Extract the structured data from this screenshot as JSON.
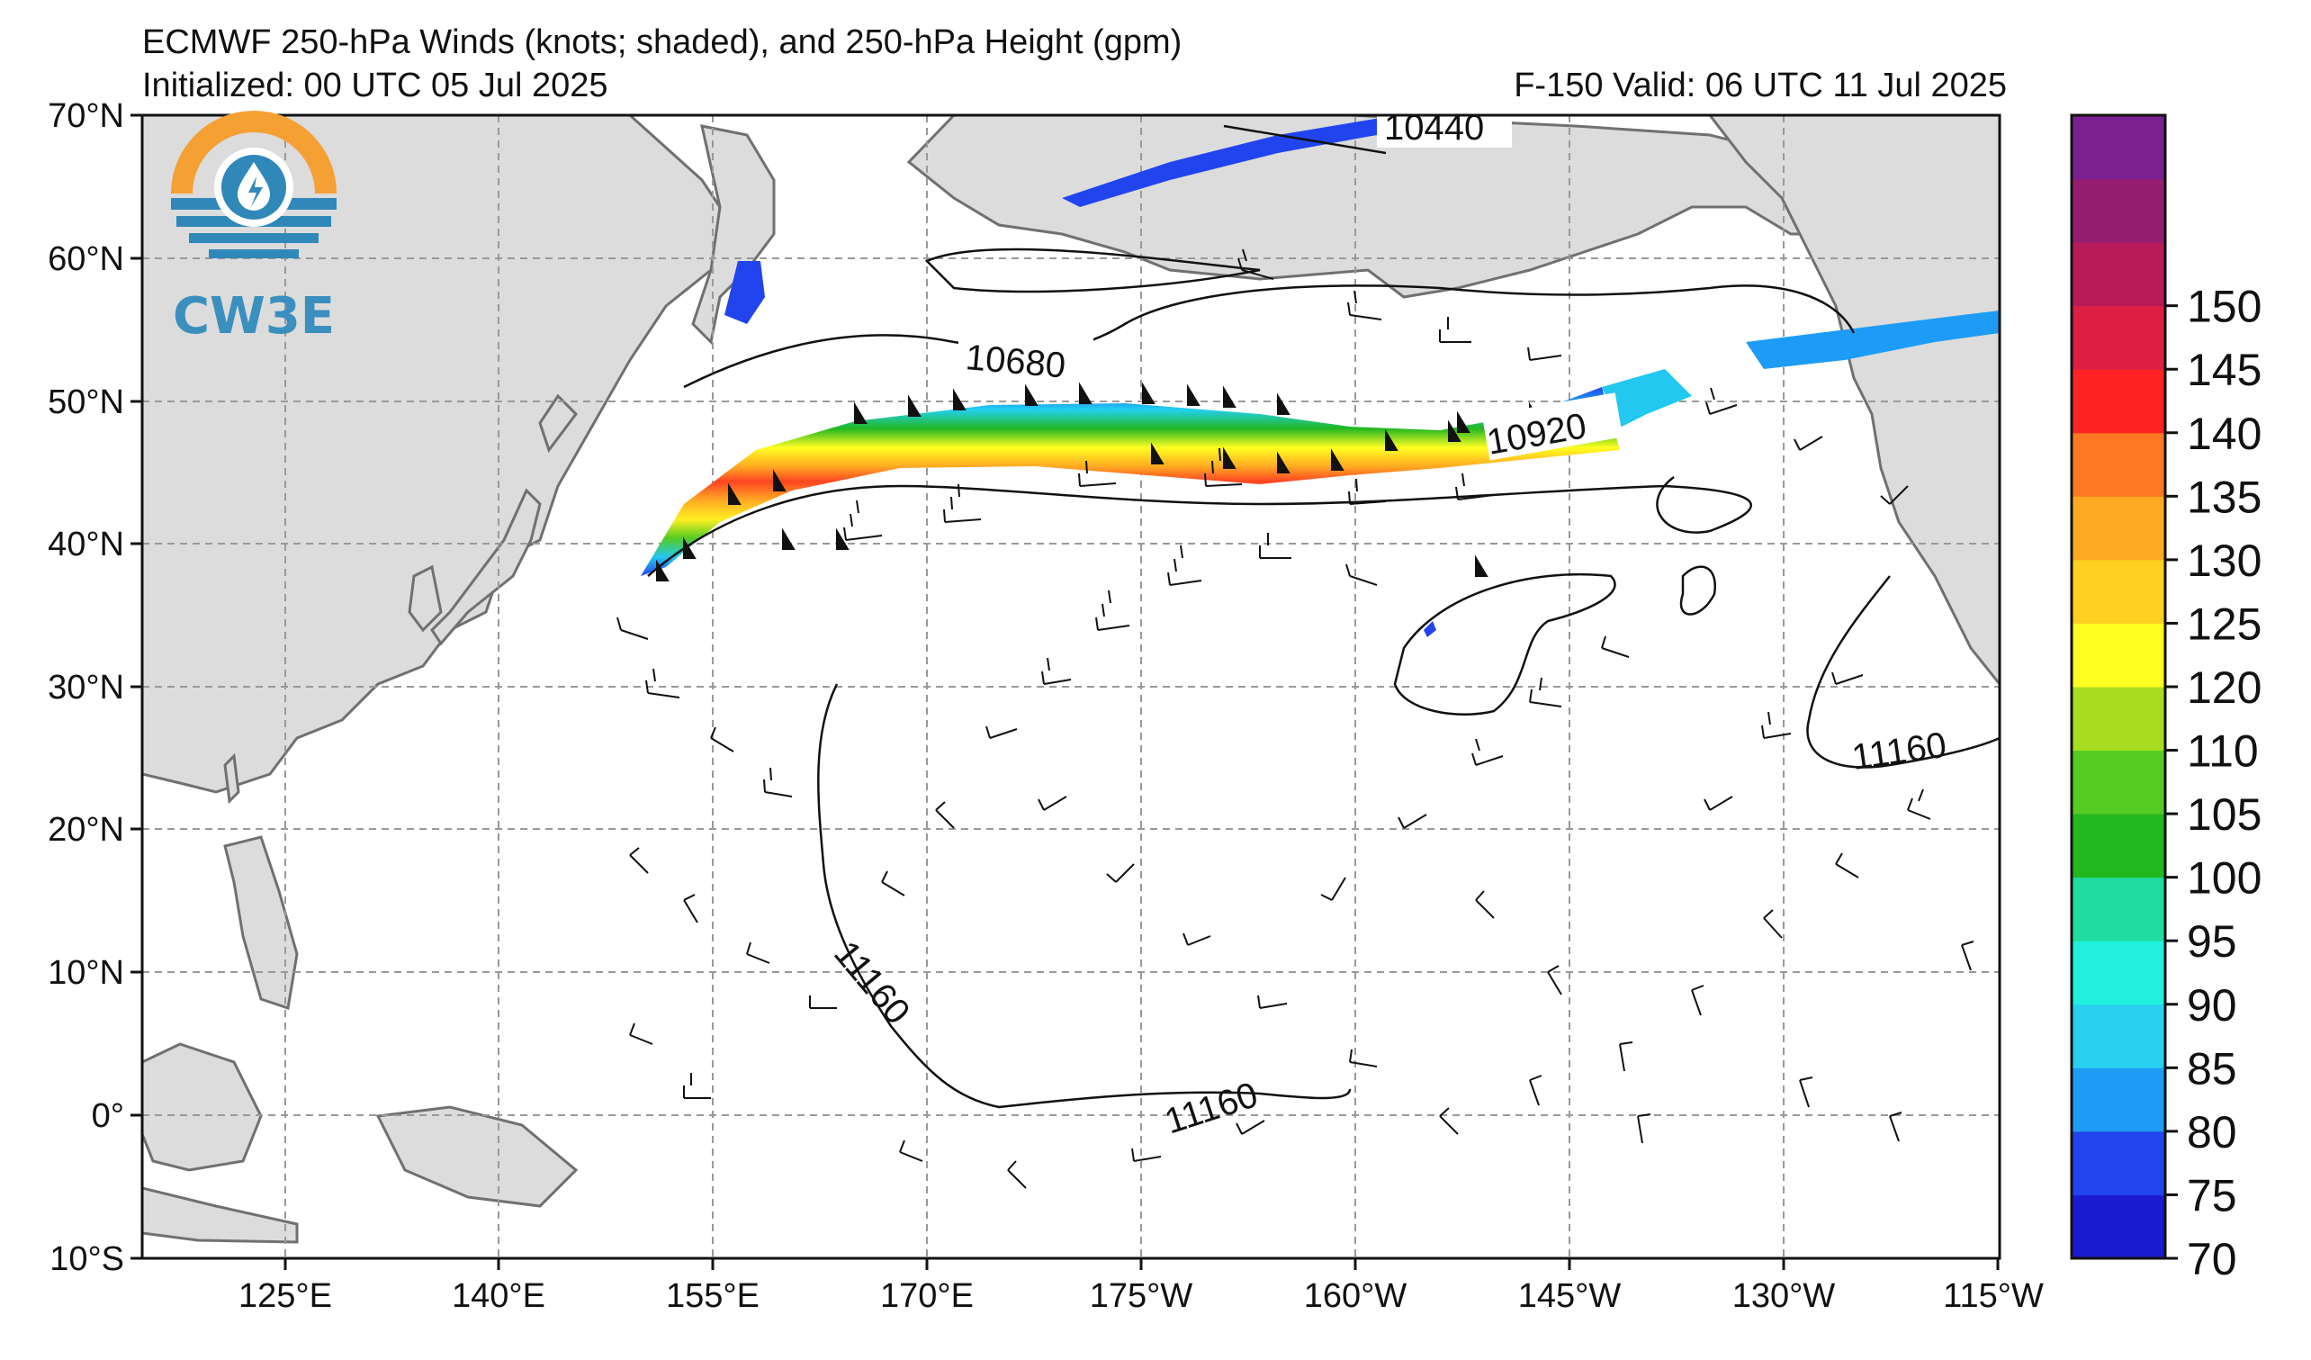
{
  "title_line1": "ECMWF 250-hPa Winds (knots; shaded), and 250-hPa Height (gpm)",
  "title_line2": "Initialized: 00 UTC 05 Jul 2025",
  "valid_text": "F-150  Valid: 06 UTC 11 Jul 2025",
  "logo": {
    "text": "CW3E",
    "icon": "water-drop-sun-icon",
    "colors": {
      "sun": "#f5a033",
      "water": "#2f88b8"
    }
  },
  "lat_labels": [
    "70°N",
    "60°N",
    "50°N",
    "40°N",
    "30°N",
    "20°N",
    "10°N",
    "0°",
    "10°S"
  ],
  "lon_labels": [
    "125°E",
    "140°E",
    "155°E",
    "170°E",
    "175°W",
    "160°W",
    "145°W",
    "130°W",
    "115°W"
  ],
  "contour_labels": [
    {
      "text": "10440"
    },
    {
      "text": "10680"
    },
    {
      "text": "10920"
    },
    {
      "text": "11160"
    },
    {
      "text": "11160"
    },
    {
      "text": "11160"
    }
  ],
  "colorbar": {
    "ticks": [
      "70",
      "75",
      "80",
      "85",
      "90",
      "95",
      "100",
      "105",
      "110",
      "120",
      "125",
      "130",
      "135",
      "140",
      "145",
      "150"
    ],
    "colors": [
      "#1a1ad0",
      "#2244ee",
      "#1e9cf5",
      "#2ad0f0",
      "#22f0e0",
      "#20dca0",
      "#22b820",
      "#55cc22",
      "#a8dd22",
      "#ffff22",
      "#ffd020",
      "#ffaa22",
      "#ff7722",
      "#ff2222",
      "#dd1f44",
      "#b81c58",
      "#961e70",
      "#7a2090"
    ]
  },
  "colors": {
    "land": "#dcdcdc",
    "coast": "#707070",
    "grid": "#999999"
  }
}
